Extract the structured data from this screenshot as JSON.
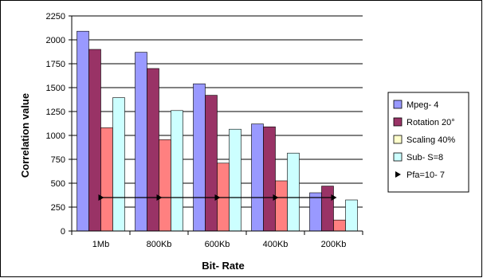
{
  "chart_data": {
    "type": "bar",
    "xlabel": "Bit- Rate",
    "ylabel": "Correlation value",
    "ylim": [
      0,
      2250
    ],
    "yticks": [
      0,
      250,
      500,
      750,
      1000,
      1250,
      1500,
      1750,
      2000,
      2250
    ],
    "grid": true,
    "legend_position": "right",
    "categories": [
      "1Mb",
      "800Kb",
      "600Kb",
      "400Kb",
      "200Kb"
    ],
    "series": [
      {
        "name": "Mpeg- 4",
        "color": "#9999ff",
        "values": [
          2090,
          1870,
          1540,
          1120,
          400
        ]
      },
      {
        "name": "Rotation 20°",
        "color": "#993366",
        "values": [
          1900,
          1700,
          1420,
          1090,
          470
        ]
      },
      {
        "name": "Scaling 40%",
        "color": "#ff8080",
        "legend_color": "#ffffcc",
        "values": [
          1080,
          955,
          710,
          525,
          115
        ]
      },
      {
        "name": "Sub- S=8",
        "color": "#ccffff",
        "values": [
          1395,
          1260,
          1065,
          815,
          325
        ]
      }
    ],
    "threshold": {
      "name": "Pfa=10- 7",
      "value": 350
    }
  }
}
